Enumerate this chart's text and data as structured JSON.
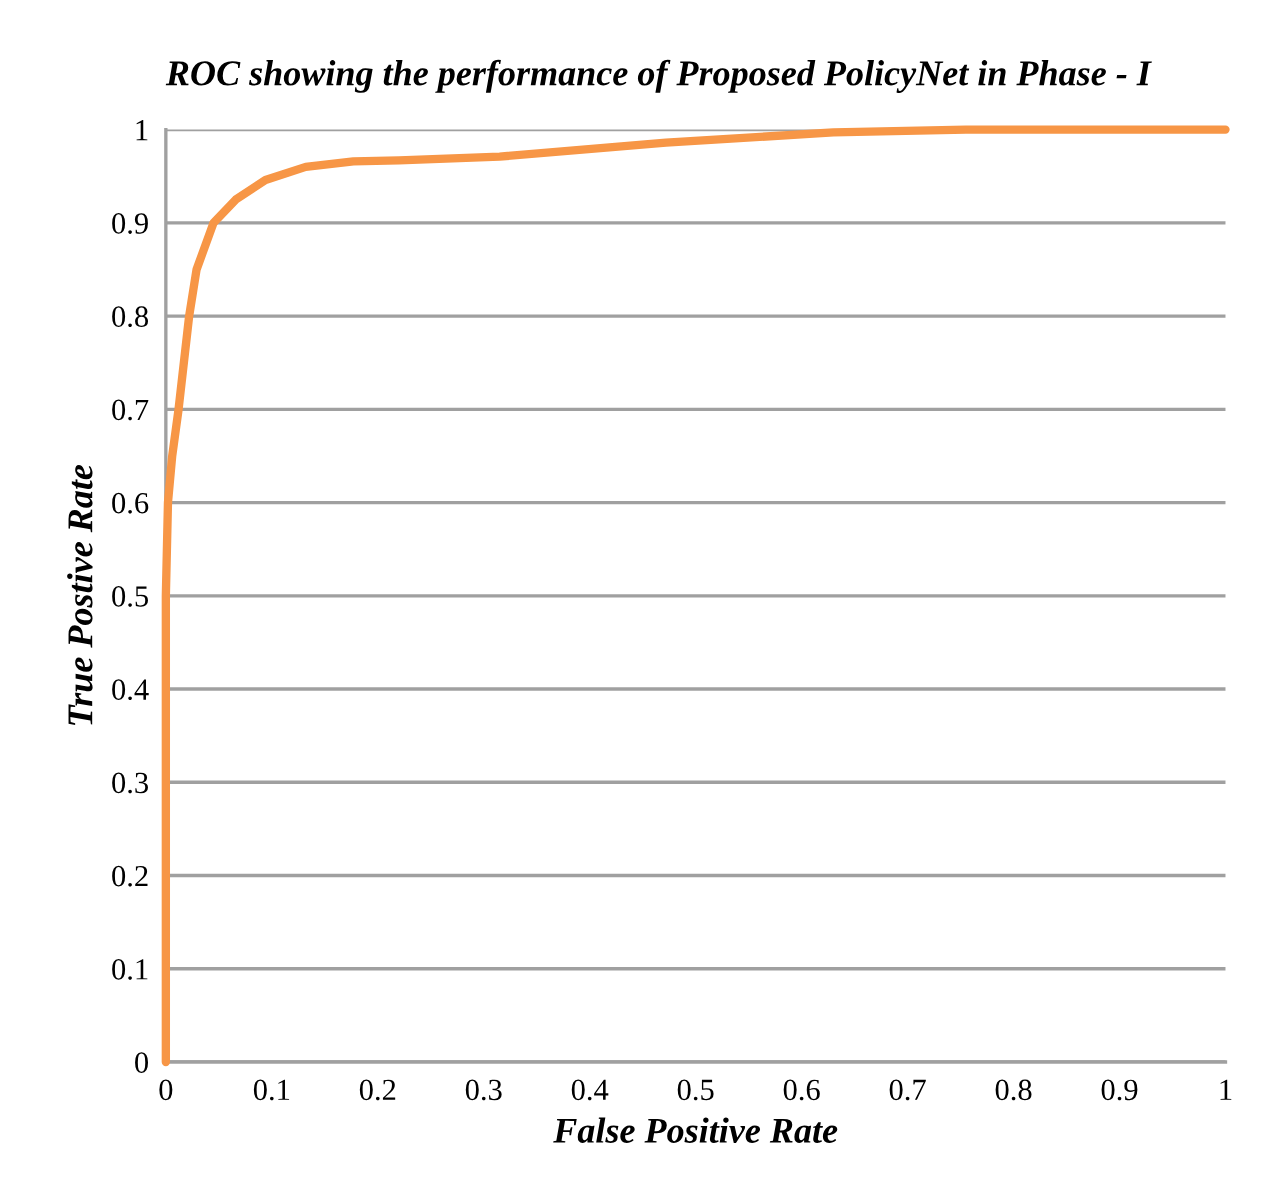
{
  "chart_data": {
    "type": "line",
    "title": "ROC showing the performance of Proposed PolicyNet in Phase - I",
    "xlabel": "False Positive Rate",
    "ylabel": "True Postive Rate",
    "series": [
      {
        "color": "#f79646",
        "x": [
          0,
          0,
          0,
          0.002,
          0.006,
          0.012,
          0.022,
          0.029,
          0.045,
          0.066,
          0.094,
          0.132,
          0.177,
          0.22,
          0.315,
          0.472,
          0.63,
          0.755,
          1.0
        ],
        "values": [
          0,
          0.4,
          0.5,
          0.6,
          0.65,
          0.7,
          0.8,
          0.85,
          0.9,
          0.925,
          0.946,
          0.96,
          0.966,
          0.967,
          0.971,
          0.986,
          0.997,
          1.0,
          1.0
        ]
      }
    ],
    "xlim": [
      0,
      1
    ],
    "xticks": [
      0,
      0.1,
      0.2,
      0.3,
      0.4,
      0.5,
      0.6,
      0.7,
      0.8,
      0.9,
      1
    ],
    "ylim": [
      0,
      1
    ],
    "yticks": [
      0,
      0.1,
      0.2,
      0.3,
      0.4,
      0.5,
      0.6,
      0.7,
      0.8,
      0.9,
      1
    ],
    "grid": "y",
    "marker": "none",
    "line_style": "solid"
  }
}
